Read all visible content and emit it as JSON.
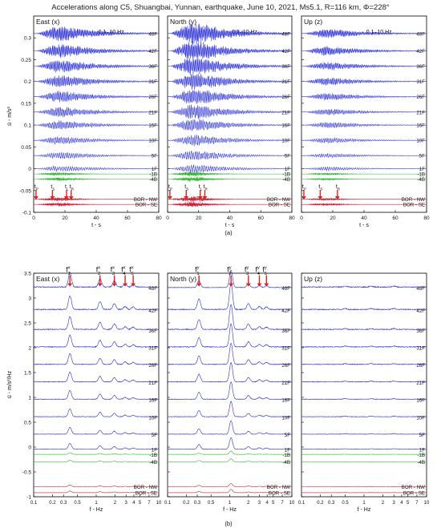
{
  "figure": {
    "title": "Accelerations along C5, Shuangbai, Yunnan, earthquake, June 10, 2021, Ms5.1, R=116 km, Φ=228°"
  },
  "colors": {
    "building": "#2a2fd4",
    "basement": "#2fb52f",
    "borehole": "#c8203a",
    "arrow": "#e0201c",
    "frame": "#000000"
  },
  "chart_data": [
    {
      "id": "a",
      "panel_label": "(a)",
      "type": "line",
      "ylabel": "ü - m/s²",
      "ylim": [
        -0.1,
        0.35
      ],
      "yticks": [
        "-0.1",
        "-0.05",
        "0",
        "0.05",
        "0.1",
        "0.15",
        "0.2",
        "0.25",
        "0.3"
      ],
      "xlim": [
        0,
        80
      ],
      "xticks": [
        "0",
        "20",
        "40",
        "60",
        "80"
      ],
      "subplots": [
        {
          "title": "East (x)",
          "band": "0.1–10 Hz",
          "xlabel": "t - s",
          "ylabel": "ü - m/s²",
          "phases": [
            "tP",
            "tS",
            "tL",
            "tR"
          ],
          "phase_times": [
            1.5,
            12,
            21,
            24
          ]
        },
        {
          "title": "North (y)",
          "band": "0.1–10 Hz",
          "xlabel": "t - s",
          "phases": [
            "tP",
            "tS",
            "tL",
            "tR"
          ],
          "phase_times": [
            1.5,
            12,
            21,
            24
          ]
        },
        {
          "title": "Up (z)",
          "band": "0.1–10 Hz",
          "xlabel": "t - s",
          "phases": [
            "tP",
            "tS",
            "tR"
          ],
          "phase_times": [
            1.5,
            12,
            23
          ]
        }
      ],
      "traces": [
        {
          "name": "48F",
          "offset": 0.31,
          "group": "building"
        },
        {
          "name": "42F",
          "offset": 0.27,
          "group": "building"
        },
        {
          "name": "36F",
          "offset": 0.235,
          "group": "building"
        },
        {
          "name": "31F",
          "offset": 0.2,
          "group": "building"
        },
        {
          "name": "26F",
          "offset": 0.165,
          "group": "building"
        },
        {
          "name": "21F",
          "offset": 0.13,
          "group": "building"
        },
        {
          "name": "16F",
          "offset": 0.1,
          "group": "building"
        },
        {
          "name": "10F",
          "offset": 0.065,
          "group": "building"
        },
        {
          "name": "5F",
          "offset": 0.03,
          "group": "building"
        },
        {
          "name": "1F",
          "offset": 0.0,
          "group": "building"
        },
        {
          "name": "-1B",
          "offset": -0.012,
          "group": "basement"
        },
        {
          "name": "-4B",
          "offset": -0.024,
          "group": "basement"
        },
        {
          "name": "BOR - NW",
          "offset": -0.07,
          "group": "borehole"
        },
        {
          "name": "BOR - SE",
          "offset": -0.082,
          "group": "borehole"
        }
      ]
    },
    {
      "id": "b",
      "panel_label": "(b)",
      "type": "line",
      "ylabel": "ü - m/s²/Hz",
      "ylim": [
        -1,
        3.5
      ],
      "yticks": [
        "-1",
        "-0.5",
        "0",
        "0.5",
        "1",
        "1.5",
        "2",
        "2.5",
        "3",
        "3.5"
      ],
      "xscale": "log",
      "xlim": [
        0.1,
        10
      ],
      "xticks": [
        "0.1",
        "0.2",
        "0.3",
        "0.5",
        "1",
        "2",
        "3",
        "4",
        "5",
        "7",
        "10"
      ],
      "xticks_values": [
        0.1,
        0.2,
        0.3,
        0.5,
        1,
        2,
        3,
        4,
        5,
        7,
        10
      ],
      "subplots": [
        {
          "title": "East (x)",
          "xlabel": "f - Hz",
          "ylabel": "ü - m/s²/Hz",
          "mode_labels": [
            "f1x",
            "f2x",
            "f3x",
            "f4x",
            "f5x"
          ],
          "mode_freqs": [
            0.38,
            1.15,
            1.95,
            2.9,
            3.9
          ]
        },
        {
          "title": "North (y)",
          "xlabel": "f - Hz",
          "mode_labels": [
            "f1y",
            "f2y",
            "f3y",
            "f4y",
            "f5y"
          ],
          "mode_freqs": [
            0.32,
            1.05,
            2.0,
            3.0,
            3.9
          ]
        },
        {
          "title": "Up (z)",
          "xlabel": "f - Hz",
          "mode_labels": [],
          "mode_freqs": []
        }
      ],
      "traces": [
        {
          "name": "48F",
          "offset": 3.2,
          "group": "building"
        },
        {
          "name": "42F",
          "offset": 2.75,
          "group": "building"
        },
        {
          "name": "36F",
          "offset": 2.35,
          "group": "building"
        },
        {
          "name": "31F",
          "offset": 2.0,
          "group": "building"
        },
        {
          "name": "26F",
          "offset": 1.65,
          "group": "building"
        },
        {
          "name": "21F",
          "offset": 1.3,
          "group": "building"
        },
        {
          "name": "16F",
          "offset": 0.95,
          "group": "building"
        },
        {
          "name": "10F",
          "offset": 0.6,
          "group": "building"
        },
        {
          "name": "5F",
          "offset": 0.25,
          "group": "building"
        },
        {
          "name": "1F",
          "offset": -0.05,
          "group": "building"
        },
        {
          "name": "-1B",
          "offset": -0.15,
          "group": "basement"
        },
        {
          "name": "-4B",
          "offset": -0.3,
          "group": "basement"
        },
        {
          "name": "BOR - NW",
          "offset": -0.8,
          "group": "borehole"
        },
        {
          "name": "BOR - SE",
          "offset": -0.92,
          "group": "borehole"
        }
      ]
    }
  ]
}
